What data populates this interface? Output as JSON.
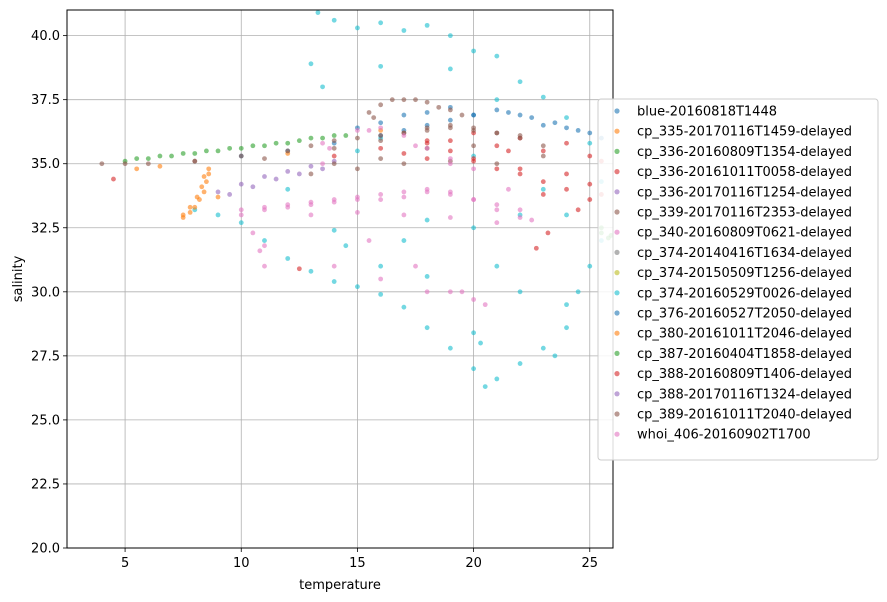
{
  "chart_data": {
    "type": "scatter",
    "title": "",
    "xlabel": "temperature",
    "ylabel": "salinity",
    "xlim": [
      2.5,
      26
    ],
    "ylim": [
      20,
      41
    ],
    "xticks": [
      5,
      10,
      15,
      20,
      25
    ],
    "yticks": [
      20.0,
      22.5,
      25.0,
      27.5,
      30.0,
      32.5,
      35.0,
      37.5,
      40.0
    ],
    "xtick_labels": [
      "5",
      "10",
      "15",
      "20",
      "25"
    ],
    "ytick_labels": [
      "20.0",
      "22.5",
      "25.0",
      "27.5",
      "30.0",
      "32.5",
      "35.0",
      "37.5",
      "40.0"
    ],
    "grid": true,
    "legend_position": "center-right",
    "series": [
      {
        "name": "blue-20160818T1448",
        "color": "#1f77b4",
        "points": [
          [
            10,
            35.3
          ],
          [
            12,
            35.5
          ],
          [
            14,
            35.8
          ],
          [
            16,
            36.1
          ],
          [
            18,
            36.5
          ],
          [
            20,
            36.9
          ],
          [
            21.5,
            37.0
          ],
          [
            22.5,
            36.8
          ],
          [
            23.5,
            36.6
          ],
          [
            24.5,
            36.3
          ],
          [
            25.5,
            36.0
          ],
          [
            17,
            36.3
          ],
          [
            19,
            36.7
          ]
        ]
      },
      {
        "name": "cp_335-20170116T1459-delayed",
        "color": "#ff7f0e",
        "points": [
          [
            7.5,
            32.9
          ],
          [
            7.8,
            33.1
          ],
          [
            8.0,
            33.3
          ],
          [
            8.2,
            33.6
          ],
          [
            8.4,
            33.9
          ],
          [
            8.5,
            34.3
          ],
          [
            8.6,
            34.6
          ],
          [
            5.5,
            34.8
          ],
          [
            6.5,
            34.9
          ],
          [
            9,
            33.7
          ]
        ]
      },
      {
        "name": "cp_336-20160809T1354-delayed",
        "color": "#2ca02c",
        "points": [
          [
            5,
            35.1
          ],
          [
            6,
            35.2
          ],
          [
            7,
            35.3
          ],
          [
            8,
            35.4
          ],
          [
            9,
            35.5
          ],
          [
            10,
            35.6
          ],
          [
            11,
            35.7
          ],
          [
            12,
            35.8
          ],
          [
            13,
            36.0
          ],
          [
            14,
            36.1
          ],
          [
            25.5,
            32.3
          ],
          [
            25.8,
            32.1
          ]
        ]
      },
      {
        "name": "cp_336-20161011T0058-delayed",
        "color": "#d62728",
        "points": [
          [
            4.5,
            34.4
          ],
          [
            12.5,
            30.9
          ],
          [
            22.7,
            31.7
          ],
          [
            23.2,
            32.3
          ],
          [
            18,
            35.8
          ],
          [
            20,
            35.2
          ],
          [
            22,
            34.8
          ],
          [
            24,
            34.0
          ],
          [
            25.5,
            33.8
          ],
          [
            21,
            35.7
          ],
          [
            23,
            35.5
          ],
          [
            19,
            35.9
          ],
          [
            25,
            35.3
          ],
          [
            17,
            35.4
          ],
          [
            24.5,
            33.2
          ]
        ]
      },
      {
        "name": "cp_336-20170116T1254-delayed",
        "color": "#9467bd",
        "points": [
          [
            9.5,
            33.8
          ],
          [
            10.5,
            34.1
          ],
          [
            11.5,
            34.4
          ],
          [
            12.5,
            34.6
          ],
          [
            13.5,
            34.8
          ]
        ]
      },
      {
        "name": "cp_339-20170116T2353-delayed",
        "color": "#8c564b",
        "points": [
          [
            5,
            35.0
          ],
          [
            8,
            35.1
          ],
          [
            11,
            35.2
          ],
          [
            14,
            35.6
          ],
          [
            16,
            35.9
          ],
          [
            17,
            36.2
          ],
          [
            18,
            36.4
          ],
          [
            19,
            36.5
          ],
          [
            20,
            36.4
          ],
          [
            21,
            36.2
          ],
          [
            22,
            36.0
          ],
          [
            15.5,
            37.0
          ],
          [
            16.5,
            37.5
          ],
          [
            17.5,
            37.5
          ],
          [
            18.5,
            37.2
          ],
          [
            19.5,
            36.9
          ],
          [
            14,
            35.0
          ],
          [
            16,
            35.2
          ]
        ]
      },
      {
        "name": "cp_340-20160809T0621-delayed",
        "color": "#e377c2",
        "points": [
          [
            10,
            33.2
          ],
          [
            11,
            33.3
          ],
          [
            12,
            33.4
          ],
          [
            13,
            33.5
          ],
          [
            14,
            33.6
          ],
          [
            15,
            33.7
          ],
          [
            16,
            33.8
          ],
          [
            17,
            33.9
          ],
          [
            18,
            34.0
          ],
          [
            19,
            33.9
          ],
          [
            20,
            33.6
          ],
          [
            21,
            33.2
          ],
          [
            22,
            32.9
          ],
          [
            11,
            31.8
          ],
          [
            14,
            31.0
          ],
          [
            16,
            30.5
          ],
          [
            18,
            30.0
          ],
          [
            19.5,
            30.0
          ],
          [
            20.5,
            29.5
          ],
          [
            13.5,
            35.8
          ],
          [
            15.5,
            36.3
          ],
          [
            17.5,
            35.7
          ],
          [
            19,
            35.0
          ]
        ]
      },
      {
        "name": "cp_374-20140416T1634-delayed",
        "color": "#7f7f7f",
        "points": []
      },
      {
        "name": "cp_374-20150509T1256-delayed",
        "color": "#bcbd22",
        "points": []
      },
      {
        "name": "cp_374-20160529T0026-delayed",
        "color": "#17becf",
        "points": [
          [
            13.3,
            40.9
          ],
          [
            14,
            40.6
          ],
          [
            15,
            40.3
          ],
          [
            16,
            40.5
          ],
          [
            17,
            40.2
          ],
          [
            18,
            40.4
          ],
          [
            19,
            40.0
          ],
          [
            20,
            39.4
          ],
          [
            21,
            39.2
          ],
          [
            13,
            38.9
          ],
          [
            22,
            38.2
          ],
          [
            23,
            37.6
          ],
          [
            24,
            36.8
          ],
          [
            25,
            35.8
          ],
          [
            25.5,
            34.3
          ],
          [
            25.5,
            32.0
          ],
          [
            25,
            31.0
          ],
          [
            24.5,
            30.0
          ],
          [
            24,
            28.6
          ],
          [
            23,
            27.8
          ],
          [
            22,
            27.2
          ],
          [
            21,
            26.6
          ],
          [
            20.5,
            26.3
          ],
          [
            20,
            27.0
          ],
          [
            19,
            27.8
          ],
          [
            18,
            28.6
          ],
          [
            17,
            29.4
          ],
          [
            16,
            29.9
          ],
          [
            15,
            30.2
          ],
          [
            14,
            30.4
          ],
          [
            13,
            30.8
          ],
          [
            12,
            31.3
          ],
          [
            11,
            32.0
          ],
          [
            10,
            32.7
          ],
          [
            9,
            33.0
          ],
          [
            8,
            33.2
          ],
          [
            13.5,
            38.0
          ],
          [
            16,
            38.8
          ],
          [
            19,
            38.7
          ],
          [
            21,
            37.5
          ],
          [
            23,
            34.0
          ],
          [
            22,
            30.0
          ],
          [
            20,
            28.4
          ],
          [
            18,
            30.6
          ],
          [
            16,
            31.0
          ],
          [
            14.5,
            31.8
          ],
          [
            14,
            32.4
          ],
          [
            18,
            32.8
          ],
          [
            20,
            32.5
          ],
          [
            22,
            33.0
          ],
          [
            15,
            35.5
          ],
          [
            20,
            35.3
          ],
          [
            24,
            29.5
          ],
          [
            23.5,
            27.5
          ],
          [
            20.3,
            28.0
          ],
          [
            12,
            34.0
          ],
          [
            17,
            32.0
          ],
          [
            21,
            31.0
          ],
          [
            24,
            33.0
          ],
          [
            16,
            36.0
          ]
        ]
      },
      {
        "name": "cp_376-20160527T2050-delayed",
        "color": "#1f77b4",
        "points": [
          [
            17,
            36.9
          ],
          [
            18,
            37.0
          ],
          [
            19,
            37.2
          ],
          [
            20,
            36.9
          ],
          [
            21,
            37.1
          ],
          [
            22,
            36.9
          ],
          [
            23,
            36.5
          ],
          [
            24,
            36.4
          ],
          [
            25,
            36.2
          ],
          [
            15,
            36.4
          ],
          [
            16,
            36.6
          ]
        ]
      },
      {
        "name": "cp_380-20161011T2046-delayed",
        "color": "#ff7f0e",
        "points": [
          [
            7.5,
            33.0
          ],
          [
            7.8,
            33.3
          ],
          [
            8.1,
            33.7
          ],
          [
            8.3,
            34.1
          ],
          [
            8.4,
            34.5
          ],
          [
            8.6,
            34.8
          ],
          [
            12,
            35.4
          ],
          [
            16,
            36.3
          ]
        ]
      },
      {
        "name": "cp_387-20160404T1858-delayed",
        "color": "#2ca02c",
        "points": [
          [
            5.5,
            35.2
          ],
          [
            6.5,
            35.3
          ],
          [
            7.5,
            35.4
          ],
          [
            8.5,
            35.5
          ],
          [
            9.5,
            35.6
          ],
          [
            10.5,
            35.7
          ],
          [
            11.5,
            35.8
          ],
          [
            12.5,
            35.9
          ],
          [
            13.5,
            36.0
          ],
          [
            14.5,
            36.1
          ],
          [
            25.5,
            32.5
          ],
          [
            26,
            32.2
          ]
        ]
      },
      {
        "name": "cp_388-20160809T1406-delayed",
        "color": "#d62728",
        "points": [
          [
            14,
            35.3
          ],
          [
            16,
            35.6
          ],
          [
            18,
            35.9
          ],
          [
            19,
            35.5
          ],
          [
            20,
            35.1
          ],
          [
            21,
            34.8
          ],
          [
            22,
            34.6
          ],
          [
            23,
            34.3
          ],
          [
            24,
            34.6
          ],
          [
            25,
            34.2
          ],
          [
            25.5,
            35.1
          ],
          [
            24,
            35.8
          ],
          [
            22,
            36.0
          ],
          [
            20,
            36.2
          ],
          [
            23,
            33.8
          ],
          [
            21.5,
            35.5
          ],
          [
            18,
            35.2
          ],
          [
            25,
            33.6
          ]
        ]
      },
      {
        "name": "cp_388-20170116T1324-delayed",
        "color": "#9467bd",
        "points": [
          [
            9,
            33.9
          ],
          [
            10,
            34.2
          ],
          [
            11,
            34.5
          ],
          [
            12,
            34.7
          ],
          [
            13,
            34.9
          ],
          [
            14,
            35.1
          ]
        ]
      },
      {
        "name": "cp_389-20161011T2040-delayed",
        "color": "#8c564b",
        "points": [
          [
            4,
            35.0
          ],
          [
            6,
            35.0
          ],
          [
            8,
            35.1
          ],
          [
            10,
            35.3
          ],
          [
            12,
            35.5
          ],
          [
            13,
            35.7
          ],
          [
            14,
            35.9
          ],
          [
            15,
            36.0
          ],
          [
            16,
            36.1
          ],
          [
            17,
            36.2
          ],
          [
            18,
            36.3
          ],
          [
            19,
            36.4
          ],
          [
            20,
            36.3
          ],
          [
            21,
            36.2
          ],
          [
            22,
            36.1
          ],
          [
            23,
            35.7
          ],
          [
            13,
            34.6
          ],
          [
            15,
            34.8
          ],
          [
            17,
            35.0
          ],
          [
            19,
            35.1
          ],
          [
            21,
            35.0
          ],
          [
            23,
            35.3
          ],
          [
            18,
            35.6
          ],
          [
            20,
            35.7
          ],
          [
            16,
            37.3
          ],
          [
            17,
            37.5
          ],
          [
            18,
            37.4
          ],
          [
            19,
            37.1
          ],
          [
            15.7,
            36.8
          ]
        ]
      },
      {
        "name": "whoi_406-20160902T1700",
        "color": "#e377c2",
        "points": [
          [
            10,
            33.0
          ],
          [
            11,
            33.2
          ],
          [
            12,
            33.3
          ],
          [
            13,
            33.4
          ],
          [
            14,
            33.5
          ],
          [
            15,
            33.6
          ],
          [
            16,
            33.6
          ],
          [
            17,
            33.7
          ],
          [
            18,
            33.9
          ],
          [
            19,
            33.8
          ],
          [
            20,
            33.6
          ],
          [
            21,
            33.4
          ],
          [
            21.5,
            34.0
          ],
          [
            22,
            33.2
          ],
          [
            22.5,
            32.8
          ],
          [
            13,
            33.0
          ],
          [
            15,
            33.1
          ],
          [
            17,
            33.0
          ],
          [
            19,
            32.9
          ],
          [
            21,
            32.7
          ],
          [
            10.5,
            32.3
          ],
          [
            10.8,
            31.6
          ],
          [
            11,
            31.0
          ],
          [
            13.5,
            35.0
          ],
          [
            13.8,
            35.6
          ],
          [
            15,
            36.3
          ],
          [
            16,
            36.4
          ],
          [
            17,
            36.1
          ],
          [
            18,
            35.6
          ],
          [
            19,
            35.2
          ],
          [
            20,
            34.8
          ],
          [
            15.5,
            32.0
          ],
          [
            17.5,
            31.0
          ],
          [
            19,
            30.0
          ],
          [
            20,
            29.7
          ]
        ]
      }
    ]
  }
}
